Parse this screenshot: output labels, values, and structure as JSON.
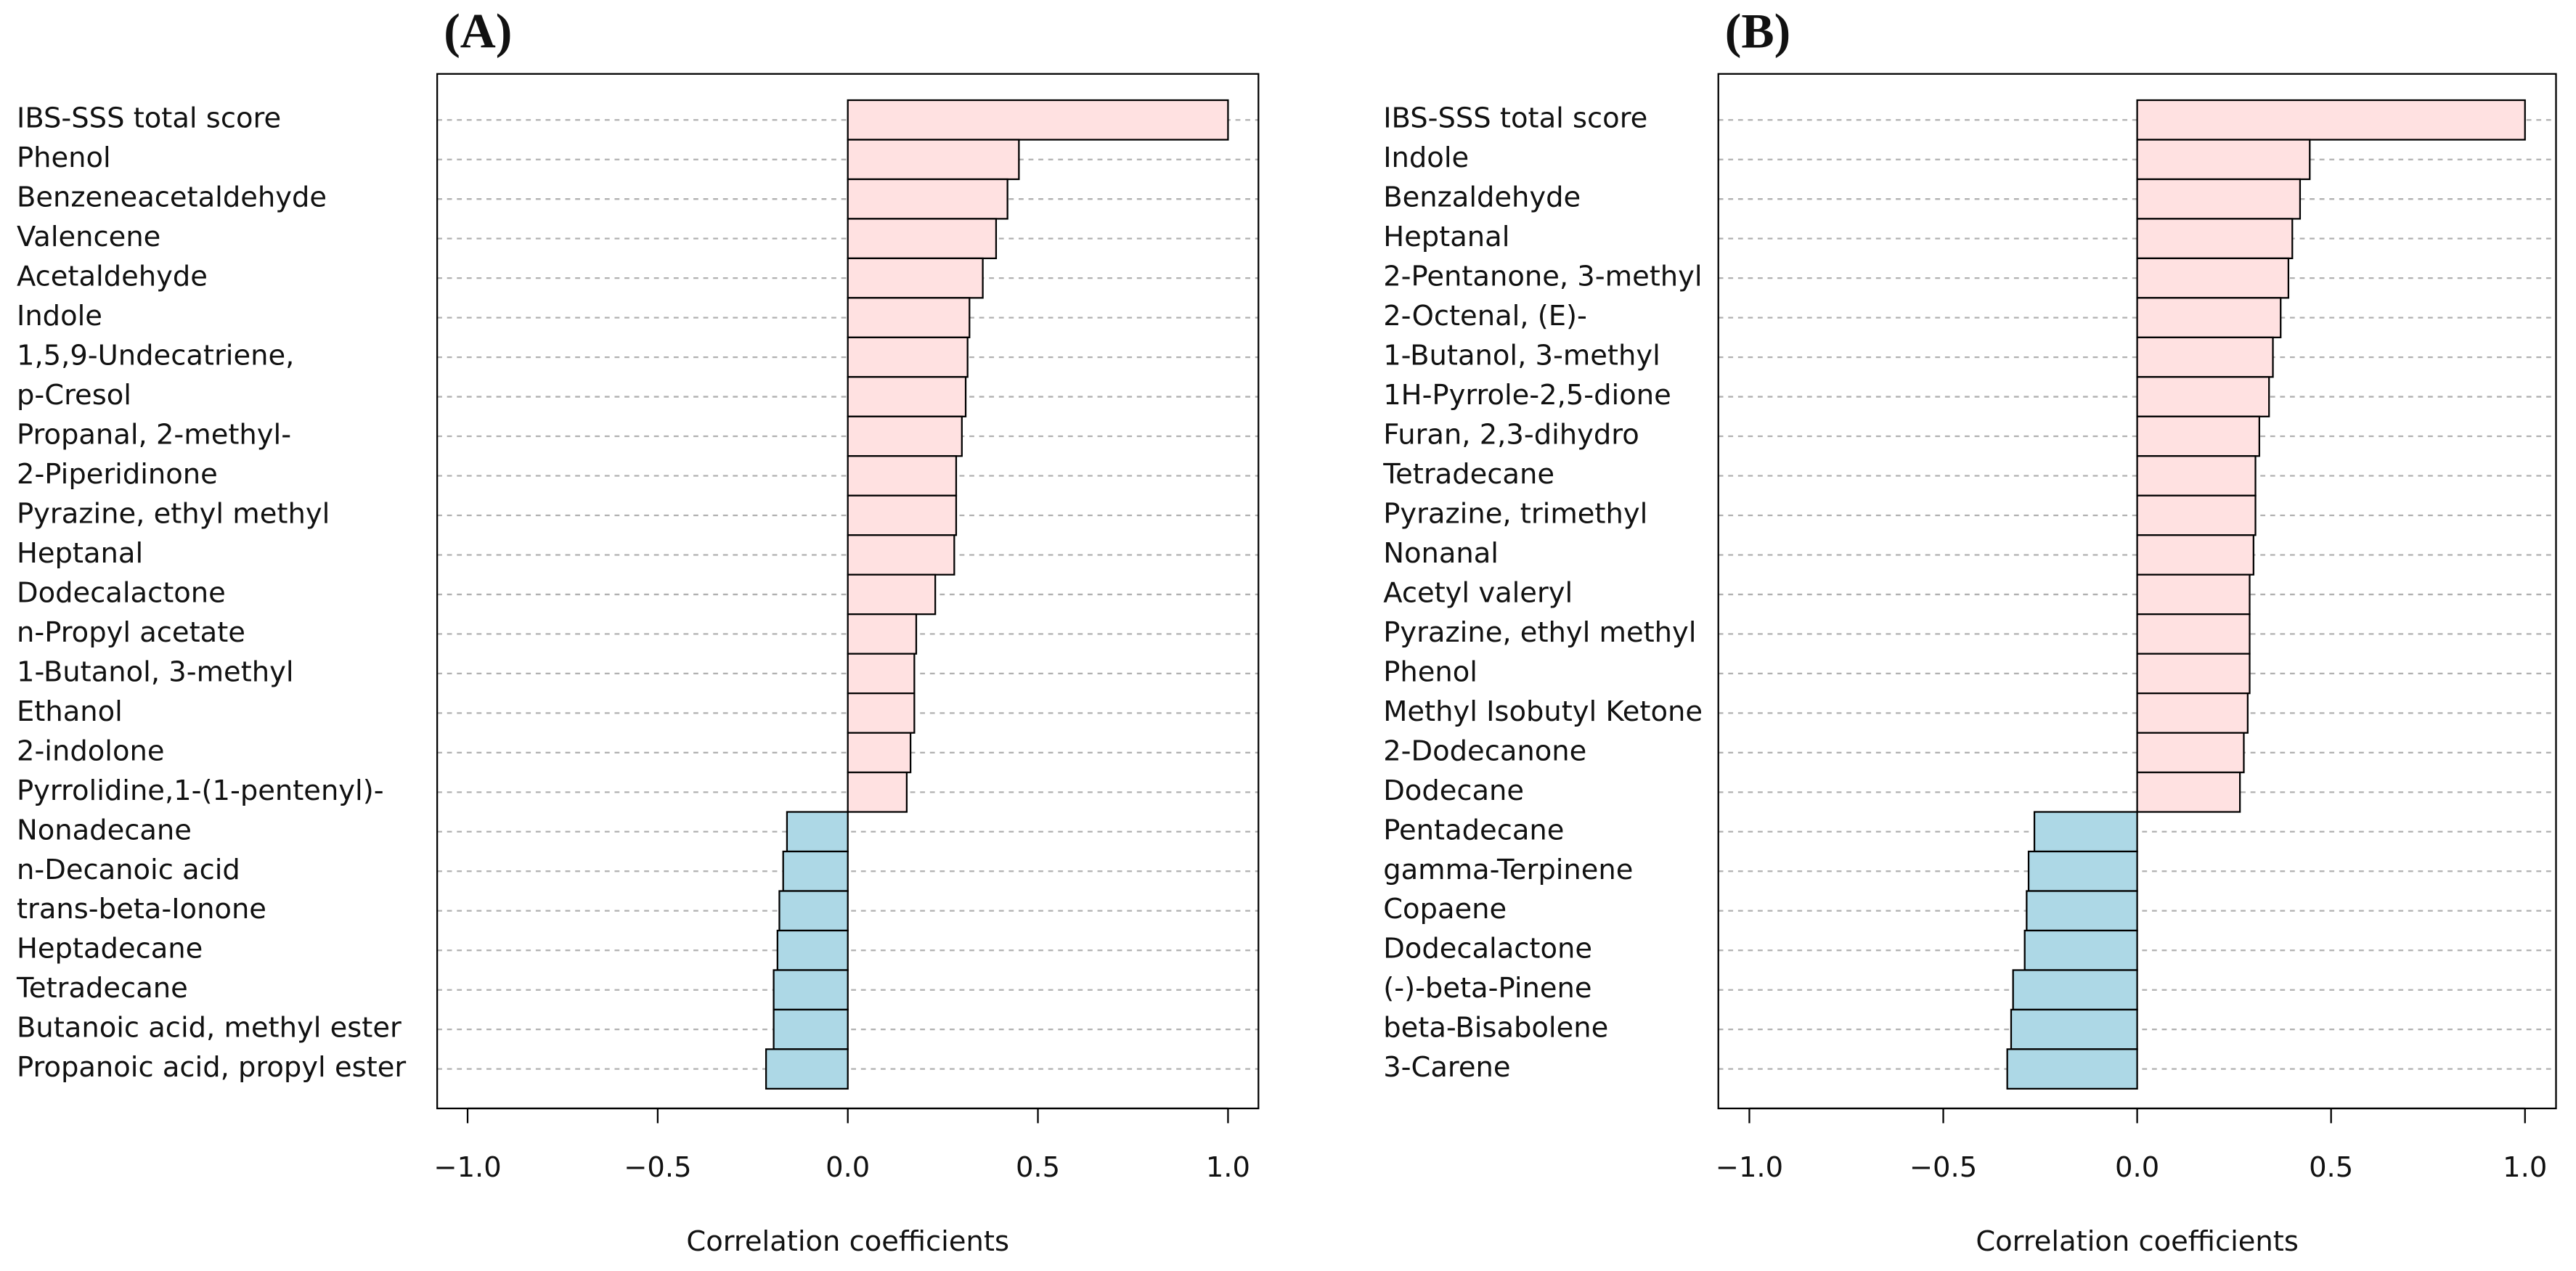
{
  "chart_data": [
    {
      "type": "bar",
      "orientation": "horizontal",
      "title": "(A)",
      "xlabel": "Correlation coefficients",
      "categories": [
        "IBS-SSS total score",
        "Phenol",
        "Benzeneacetaldehyde",
        "Valencene",
        "Acetaldehyde",
        "Indole",
        "1,5,9-Undecatriene,",
        "p-Cresol",
        "Propanal, 2-methyl-",
        "2-Piperidinone",
        "Pyrazine, ethyl methyl",
        "Heptanal",
        "Dodecalactone",
        "n-Propyl acetate",
        "1-Butanol, 3-methyl",
        "Ethanol",
        "2-indolone",
        "Pyrrolidine,1-(1-pentenyl)-",
        "Nonadecane",
        "n-Decanoic acid",
        "trans-beta-Ionone",
        "Heptadecane",
        "Tetradecane",
        "Butanoic acid, methyl ester",
        "Propanoic acid, propyl ester"
      ],
      "values": [
        1.0,
        0.45,
        0.42,
        0.39,
        0.355,
        0.32,
        0.315,
        0.31,
        0.3,
        0.285,
        0.285,
        0.28,
        0.23,
        0.18,
        0.175,
        0.175,
        0.165,
        0.155,
        -0.16,
        -0.17,
        -0.18,
        -0.185,
        -0.195,
        -0.195,
        -0.215
      ],
      "positive_color": "#ffe1e1",
      "negative_color": "#add8e6",
      "xlim": [
        -1.08,
        1.08
      ],
      "xticks": [
        {
          "value": -1.0,
          "label": "−1.0"
        },
        {
          "value": -0.5,
          "label": "−0.5"
        },
        {
          "value": 0.0,
          "label": "0.0"
        },
        0.5,
        {
          "value": 1.0,
          "label": "1.0"
        }
      ],
      "grid": true
    },
    {
      "type": "bar",
      "orientation": "horizontal",
      "title": "(B)",
      "xlabel": "Correlation coefficients",
      "categories": [
        "IBS-SSS total score",
        "Indole",
        "Benzaldehyde",
        "Heptanal",
        "2-Pentanone, 3-methyl",
        "2-Octenal, (E)-",
        "1-Butanol, 3-methyl",
        "1H-Pyrrole-2,5-dione",
        "Furan, 2,3-dihydro",
        "Tetradecane",
        "Pyrazine, trimethyl",
        "Nonanal",
        "Acetyl valeryl",
        "Pyrazine, ethyl methyl",
        "Phenol",
        "Methyl Isobutyl Ketone",
        "2-Dodecanone",
        "Dodecane",
        "Pentadecane",
        "gamma-Terpinene",
        "Copaene",
        "Dodecalactone",
        "(-)-beta-Pinene",
        "beta-Bisabolene",
        "3-Carene"
      ],
      "values": [
        1.0,
        0.445,
        0.42,
        0.4,
        0.39,
        0.37,
        0.35,
        0.34,
        0.315,
        0.305,
        0.305,
        0.3,
        0.29,
        0.29,
        0.29,
        0.285,
        0.275,
        0.265,
        -0.265,
        -0.28,
        -0.285,
        -0.29,
        -0.32,
        -0.325,
        -0.335
      ],
      "positive_color": "#ffe1e1",
      "negative_color": "#add8e6",
      "xlim": [
        -1.08,
        1.08
      ],
      "xticks": [
        {
          "value": -1.0,
          "label": "−1.0"
        },
        {
          "value": -0.5,
          "label": "−0.5"
        },
        {
          "value": 0.0,
          "label": "0.0"
        },
        0.5,
        {
          "value": 1.0,
          "label": "1.0"
        }
      ],
      "grid": true
    }
  ]
}
